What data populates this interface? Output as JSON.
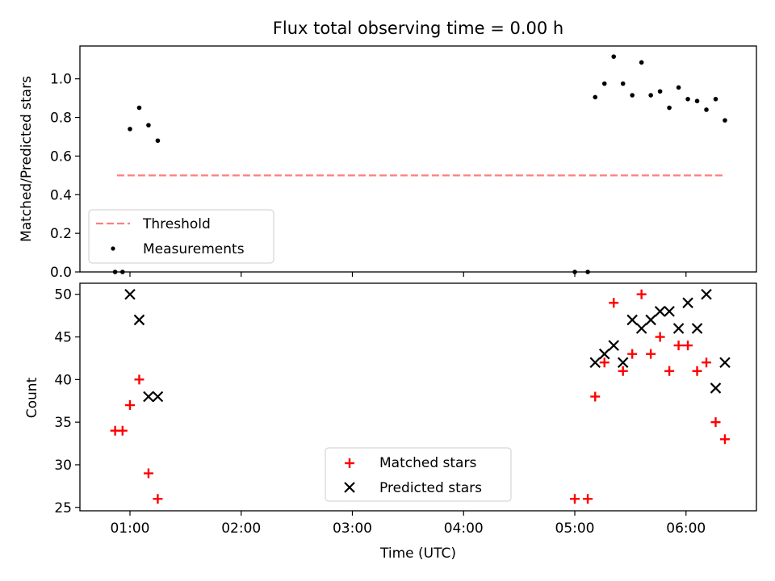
{
  "chart_data": {
    "title": "Flux total observing time = 0.00 h",
    "xlabel": "Time (UTC)",
    "x_unit": "hours UTC",
    "xlim": [
      "00:33",
      "06:38"
    ],
    "x_ticks": [
      "01:00",
      "02:00",
      "03:00",
      "04:00",
      "05:00",
      "06:00"
    ],
    "panels": [
      {
        "id": "ratio",
        "type": "scatter",
        "ylabel": "Matched/Predicted stars",
        "ylim": [
          0.0,
          1.17
        ],
        "y_ticks": [
          "0.0",
          "0.2",
          "0.4",
          "0.6",
          "0.8",
          "1.0"
        ],
        "legend_position": "lower-left",
        "threshold": {
          "name": "Threshold",
          "value": 0.5,
          "x_range": [
            "00:53",
            "06:20"
          ],
          "color": "#ff7f7f",
          "style": "dashed"
        },
        "series": [
          {
            "name": "Measurements",
            "color": "#000000",
            "marker": "dot",
            "points": [
              [
                "00:52",
                0.0
              ],
              [
                "00:56",
                0.0
              ],
              [
                "01:00",
                0.74
              ],
              [
                "01:05",
                0.85
              ],
              [
                "01:10",
                0.76
              ],
              [
                "01:15",
                0.68
              ],
              [
                "05:00",
                0.0
              ],
              [
                "05:07",
                0.0
              ],
              [
                "05:11",
                0.905
              ],
              [
                "05:16",
                0.975
              ],
              [
                "05:21",
                1.115
              ],
              [
                "05:26",
                0.975
              ],
              [
                "05:31",
                0.915
              ],
              [
                "05:36",
                1.085
              ],
              [
                "05:41",
                0.915
              ],
              [
                "05:46",
                0.935
              ],
              [
                "05:51",
                0.85
              ],
              [
                "05:56",
                0.955
              ],
              [
                "06:01",
                0.895
              ],
              [
                "06:06",
                0.885
              ],
              [
                "06:11",
                0.84
              ],
              [
                "06:16",
                0.895
              ],
              [
                "06:21",
                0.785
              ]
            ]
          }
        ]
      },
      {
        "id": "counts",
        "type": "scatter",
        "ylabel": "Count",
        "ylim": [
          24.6,
          51.3
        ],
        "y_ticks": [
          "25",
          "30",
          "35",
          "40",
          "45",
          "50"
        ],
        "legend_position": "lower-center",
        "series": [
          {
            "name": "Matched stars",
            "color": "#ff0000",
            "marker": "plus",
            "points": [
              [
                "00:52",
                34
              ],
              [
                "00:56",
                34
              ],
              [
                "01:00",
                37
              ],
              [
                "01:05",
                40
              ],
              [
                "01:10",
                29
              ],
              [
                "01:15",
                26
              ],
              [
                "05:00",
                26
              ],
              [
                "05:07",
                26
              ],
              [
                "05:11",
                38
              ],
              [
                "05:16",
                42
              ],
              [
                "05:21",
                49
              ],
              [
                "05:26",
                41
              ],
              [
                "05:31",
                43
              ],
              [
                "05:36",
                50
              ],
              [
                "05:41",
                43
              ],
              [
                "05:46",
                45
              ],
              [
                "05:51",
                41
              ],
              [
                "05:56",
                44
              ],
              [
                "06:01",
                44
              ],
              [
                "06:06",
                41
              ],
              [
                "06:11",
                42
              ],
              [
                "06:16",
                35
              ],
              [
                "06:21",
                33
              ]
            ]
          },
          {
            "name": "Predicted stars",
            "color": "#000000",
            "marker": "x",
            "points": [
              [
                "01:00",
                50
              ],
              [
                "01:05",
                47
              ],
              [
                "01:10",
                38
              ],
              [
                "01:15",
                38
              ],
              [
                "05:11",
                42
              ],
              [
                "05:16",
                43
              ],
              [
                "05:21",
                44
              ],
              [
                "05:26",
                42
              ],
              [
                "05:31",
                47
              ],
              [
                "05:36",
                46
              ],
              [
                "05:41",
                47
              ],
              [
                "05:46",
                48
              ],
              [
                "05:51",
                48
              ],
              [
                "05:56",
                46
              ],
              [
                "06:01",
                49
              ],
              [
                "06:06",
                46
              ],
              [
                "06:11",
                50
              ],
              [
                "06:16",
                39
              ],
              [
                "06:21",
                42
              ]
            ]
          }
        ]
      }
    ]
  }
}
